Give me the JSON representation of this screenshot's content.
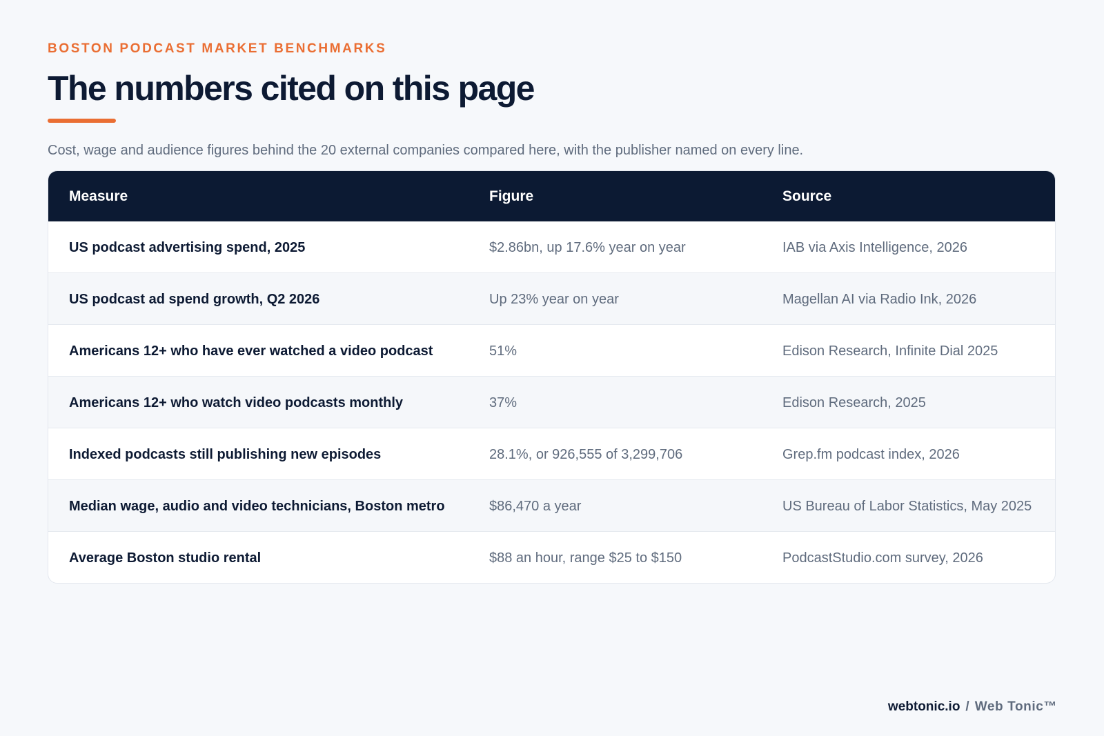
{
  "header": {
    "eyebrow": "BOSTON PODCAST MARKET BENCHMARKS",
    "title": "The numbers cited on this page",
    "subtitle": "Cost, wage and audience figures behind the 20 external companies compared here, with the publisher named on every line."
  },
  "table": {
    "columns": [
      "Measure",
      "Figure",
      "Source"
    ],
    "rows": [
      {
        "measure": "US podcast advertising spend, 2025",
        "figure": "$2.86bn, up 17.6% year on year",
        "source": "IAB via Axis Intelligence, 2026"
      },
      {
        "measure": "US podcast ad spend growth, Q2 2026",
        "figure": "Up 23% year on year",
        "source": "Magellan AI via Radio Ink, 2026"
      },
      {
        "measure": "Americans 12+ who have ever watched a video podcast",
        "figure": "51%",
        "source": "Edison Research, Infinite Dial 2025"
      },
      {
        "measure": "Americans 12+ who watch video podcasts monthly",
        "figure": "37%",
        "source": "Edison Research, 2025"
      },
      {
        "measure": "Indexed podcasts still publishing new episodes",
        "figure": "28.1%, or 926,555 of 3,299,706",
        "source": "Grep.fm podcast index, 2026"
      },
      {
        "measure": "Median wage, audio and video technicians, Boston metro",
        "figure": "$86,470 a year",
        "source": "US Bureau of Labor Statistics, May 2025"
      },
      {
        "measure": "Average Boston studio rental",
        "figure": "$88 an hour, range $25 to $150",
        "source": "PodcastStudio.com survey, 2026"
      }
    ]
  },
  "footer": {
    "site": "webtonic.io",
    "separator": "/",
    "brand": "Web Tonic™"
  },
  "colors": {
    "accent": "#ea6e33",
    "header_bg": "#0c1a33",
    "text_dark": "#0d1a33",
    "text_muted": "#5f6b7d"
  }
}
